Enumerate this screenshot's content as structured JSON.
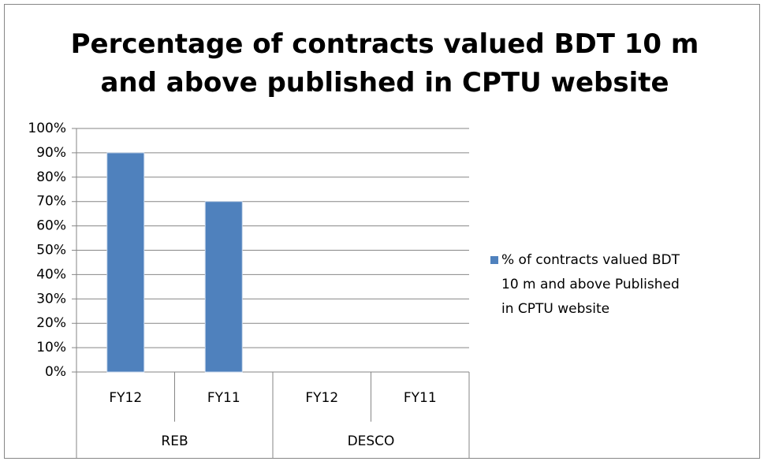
{
  "chart_data": {
    "type": "bar",
    "title": "Percentage of contracts valued BDT 10 m and above published in CPTU website",
    "categories": [
      "FY12",
      "FY11",
      "FY12",
      "FY11"
    ],
    "groups": [
      "REB",
      "DESCO"
    ],
    "series": [
      {
        "name": "% of contracts valued BDT 10 m and above Published in CPTU website",
        "color": "#4f81bd",
        "values": [
          90,
          70,
          null,
          null
        ]
      }
    ],
    "ylim": [
      0,
      100
    ],
    "yticks": [
      {
        "value": 0,
        "label": "0%"
      },
      {
        "value": 10,
        "label": "10%"
      },
      {
        "value": 20,
        "label": "20%"
      },
      {
        "value": 30,
        "label": "30%"
      },
      {
        "value": 40,
        "label": "40%"
      },
      {
        "value": 50,
        "label": "50%"
      },
      {
        "value": 60,
        "label": "60%"
      },
      {
        "value": 70,
        "label": "70%"
      },
      {
        "value": 80,
        "label": "80%"
      },
      {
        "value": 90,
        "label": "90%"
      },
      {
        "value": 100,
        "label": "100%"
      }
    ],
    "grid": true,
    "legend": "right"
  }
}
